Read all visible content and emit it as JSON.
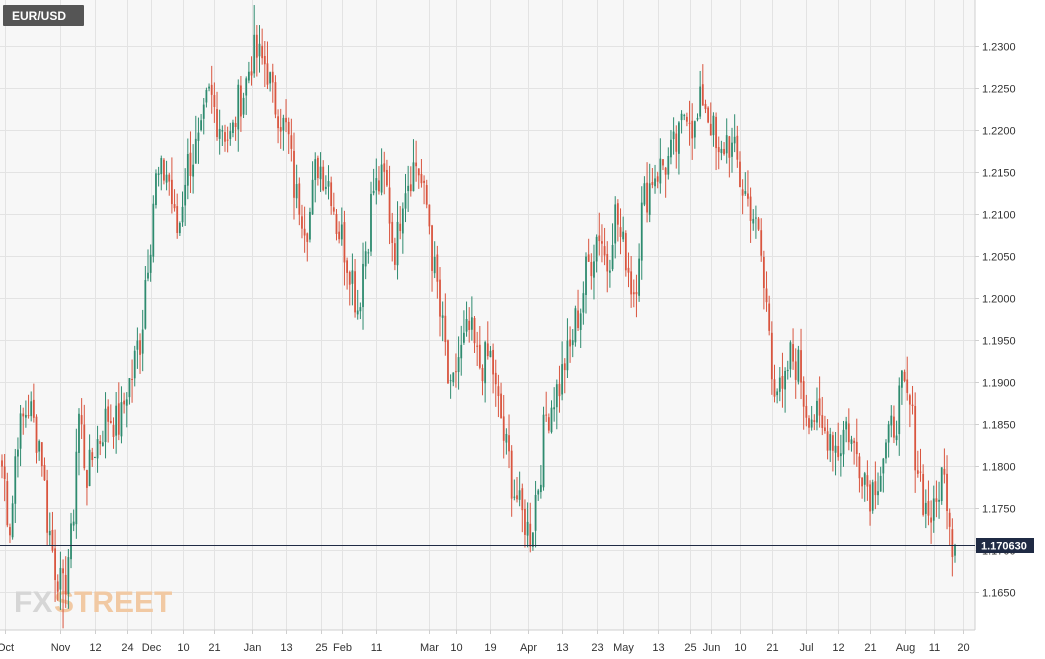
{
  "symbol": "EUR/USD",
  "last_price_label": "1.170630",
  "colors": {
    "up": "#2e8b6f",
    "down": "#d9553f",
    "price_line": "#1f2a44"
  },
  "watermark": {
    "part1": "FX",
    "part2": "STREET"
  },
  "chart_data": {
    "type": "candlestick",
    "title": "EUR/USD",
    "xlabel": "",
    "ylabel": "",
    "ylim": [
      1.1605,
      1.2355
    ],
    "last_price": 1.17063,
    "grid": true,
    "y_ticks": [
      1.165,
      1.17,
      1.175,
      1.18,
      1.185,
      1.19,
      1.195,
      1.2,
      1.205,
      1.21,
      1.215,
      1.22,
      1.225,
      1.23
    ],
    "y_tick_labels": [
      "1.1650",
      "1.1700",
      "1.1750",
      "1.1800",
      "1.1850",
      "1.1900",
      "1.1950",
      "1.2000",
      "1.2050",
      "1.2100",
      "1.2150",
      "1.2200",
      "1.2250",
      "1.2300"
    ],
    "x_tick_labels": [
      {
        "label": "Oct",
        "bar": 1
      },
      {
        "label": "Nov",
        "bar": 22
      },
      {
        "label": "12",
        "bar": 35
      },
      {
        "label": "24",
        "bar": 47
      },
      {
        "label": "Dec",
        "bar": 56
      },
      {
        "label": "10",
        "bar": 68
      },
      {
        "label": "21",
        "bar": 80
      },
      {
        "label": "Jan",
        "bar": 94
      },
      {
        "label": "13",
        "bar": 107
      },
      {
        "label": "25",
        "bar": 120
      },
      {
        "label": "Feb",
        "bar": 128
      },
      {
        "label": "11",
        "bar": 141
      },
      {
        "label": "Mar",
        "bar": 161
      },
      {
        "label": "10",
        "bar": 171
      },
      {
        "label": "19",
        "bar": 184
      },
      {
        "label": "Apr",
        "bar": 198
      },
      {
        "label": "13",
        "bar": 211
      },
      {
        "label": "23",
        "bar": 224
      },
      {
        "label": "May",
        "bar": 234
      },
      {
        "label": "13",
        "bar": 247
      },
      {
        "label": "25",
        "bar": 259
      },
      {
        "label": "Jun",
        "bar": 267
      },
      {
        "label": "10",
        "bar": 278
      },
      {
        "label": "21",
        "bar": 290
      },
      {
        "label": "Jul",
        "bar": 303
      },
      {
        "label": "12",
        "bar": 315
      },
      {
        "label": "21",
        "bar": 327
      },
      {
        "label": "Aug",
        "bar": 340
      },
      {
        "label": "11",
        "bar": 351
      },
      {
        "label": "20",
        "bar": 362
      }
    ],
    "waypoints": [
      [
        0,
        1.18
      ],
      [
        3,
        1.173
      ],
      [
        6,
        1.184
      ],
      [
        10,
        1.187
      ],
      [
        14,
        1.183
      ],
      [
        18,
        1.172
      ],
      [
        20,
        1.168
      ],
      [
        23,
        1.165
      ],
      [
        26,
        1.171
      ],
      [
        29,
        1.186
      ],
      [
        32,
        1.179
      ],
      [
        36,
        1.183
      ],
      [
        40,
        1.186
      ],
      [
        44,
        1.185
      ],
      [
        48,
        1.19
      ],
      [
        52,
        1.195
      ],
      [
        55,
        1.205
      ],
      [
        58,
        1.214
      ],
      [
        62,
        1.215
      ],
      [
        66,
        1.208
      ],
      [
        70,
        1.216
      ],
      [
        74,
        1.218
      ],
      [
        78,
        1.224
      ],
      [
        82,
        1.221
      ],
      [
        86,
        1.219
      ],
      [
        90,
        1.224
      ],
      [
        95,
        1.229
      ],
      [
        99,
        1.228
      ],
      [
        103,
        1.223
      ],
      [
        107,
        1.22
      ],
      [
        111,
        1.212
      ],
      [
        115,
        1.209
      ],
      [
        119,
        1.216
      ],
      [
        123,
        1.214
      ],
      [
        127,
        1.208
      ],
      [
        131,
        1.204
      ],
      [
        134,
        1.199
      ],
      [
        137,
        1.206
      ],
      [
        140,
        1.213
      ],
      [
        144,
        1.214
      ],
      [
        148,
        1.206
      ],
      [
        152,
        1.214
      ],
      [
        156,
        1.216
      ],
      [
        160,
        1.211
      ],
      [
        163,
        1.203
      ],
      [
        166,
        1.196
      ],
      [
        169,
        1.188
      ],
      [
        172,
        1.193
      ],
      [
        176,
        1.196
      ],
      [
        180,
        1.192
      ],
      [
        184,
        1.193
      ],
      [
        187,
        1.187
      ],
      [
        190,
        1.182
      ],
      [
        193,
        1.177
      ],
      [
        196,
        1.174
      ],
      [
        199,
        1.172
      ],
      [
        202,
        1.178
      ],
      [
        205,
        1.186
      ],
      [
        209,
        1.189
      ],
      [
        213,
        1.193
      ],
      [
        217,
        1.198
      ],
      [
        221,
        1.204
      ],
      [
        225,
        1.208
      ],
      [
        228,
        1.204
      ],
      [
        231,
        1.21
      ],
      [
        234,
        1.206
      ],
      [
        238,
        1.201
      ],
      [
        242,
        1.212
      ],
      [
        246,
        1.215
      ],
      [
        250,
        1.216
      ],
      [
        254,
        1.218
      ],
      [
        258,
        1.223
      ],
      [
        261,
        1.22
      ],
      [
        264,
        1.224
      ],
      [
        267,
        1.221
      ],
      [
        270,
        1.216
      ],
      [
        273,
        1.219
      ],
      [
        276,
        1.217
      ],
      [
        279,
        1.213
      ],
      [
        282,
        1.211
      ],
      [
        285,
        1.207
      ],
      [
        288,
        1.199
      ],
      [
        291,
        1.19
      ],
      [
        294,
        1.188
      ],
      [
        297,
        1.193
      ],
      [
        300,
        1.192
      ],
      [
        303,
        1.187
      ],
      [
        306,
        1.186
      ],
      [
        309,
        1.184
      ],
      [
        312,
        1.184
      ],
      [
        315,
        1.182
      ],
      [
        318,
        1.185
      ],
      [
        321,
        1.182
      ],
      [
        324,
        1.18
      ],
      [
        327,
        1.177
      ],
      [
        330,
        1.179
      ],
      [
        333,
        1.182
      ],
      [
        336,
        1.185
      ],
      [
        339,
        1.189
      ],
      [
        342,
        1.187
      ],
      [
        345,
        1.18
      ],
      [
        348,
        1.175
      ],
      [
        351,
        1.174
      ],
      [
        354,
        1.179
      ],
      [
        356,
        1.177
      ],
      [
        358,
        1.171
      ],
      [
        359,
        1.17063
      ]
    ],
    "range_note": "Candles span bars 0–359; lowest low ≈1.1605 (early Nov), highest high ≈1.2349 (early Jan)."
  }
}
